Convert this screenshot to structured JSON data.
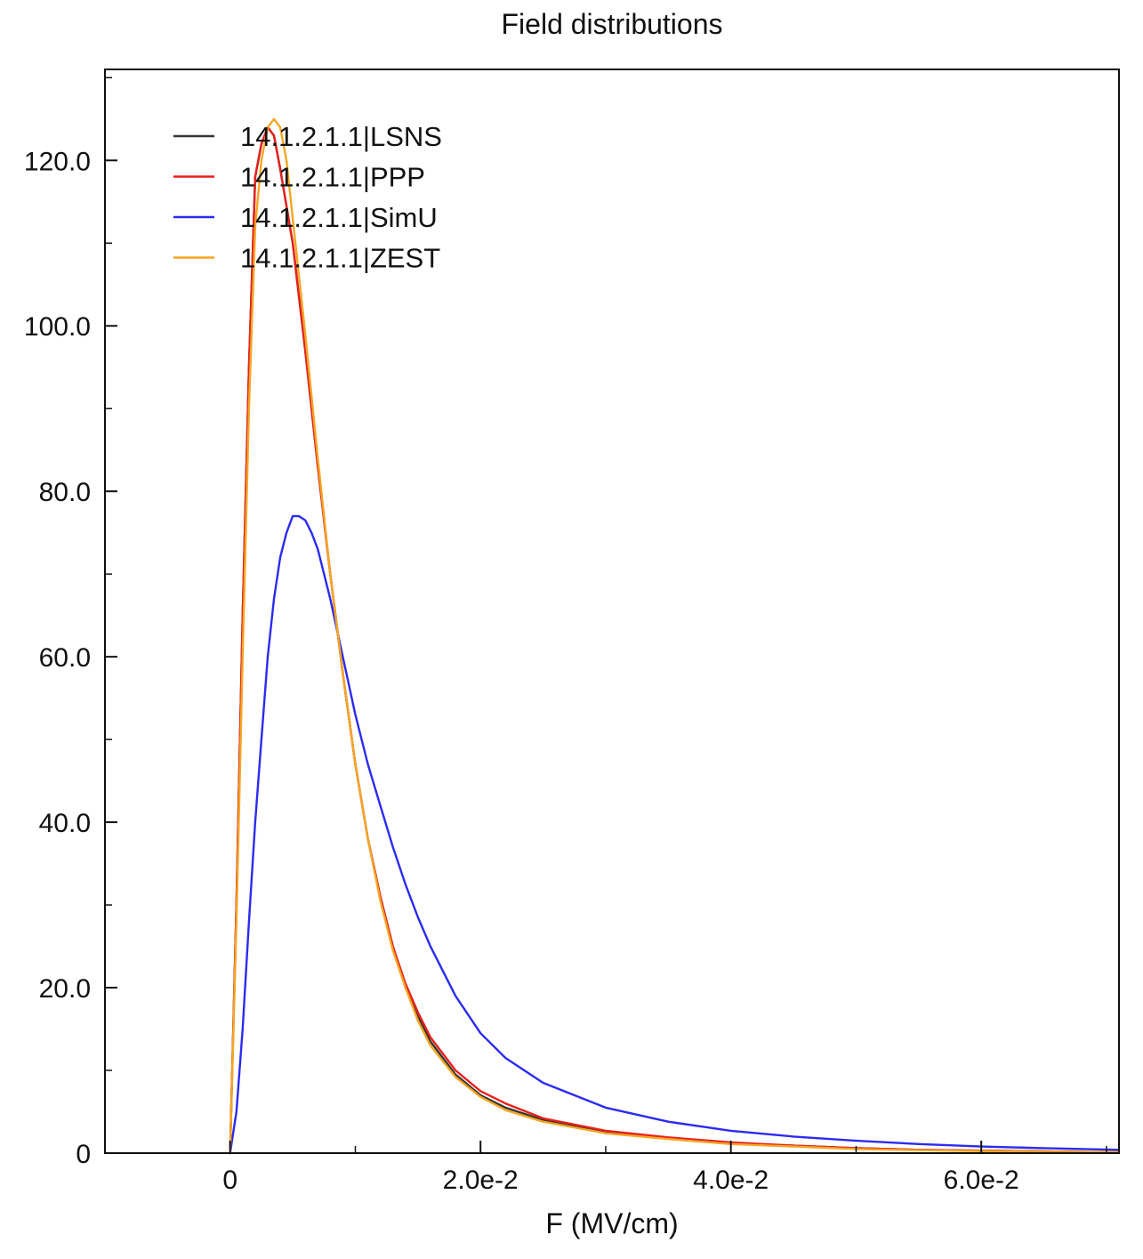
{
  "chart_data": {
    "type": "line",
    "title": "Field distributions",
    "xlabel": "F (MV/cm)",
    "ylabel": "",
    "xlim": [
      -0.01,
      0.071
    ],
    "ylim": [
      0,
      131
    ],
    "xticks": [
      0,
      0.02,
      0.04,
      0.06
    ],
    "xtick_labels": [
      "0",
      "2.0e-2",
      "4.0e-2",
      "6.0e-2"
    ],
    "yticks": [
      0,
      20,
      40,
      60,
      80,
      100,
      120
    ],
    "ytick_labels": [
      "0",
      "20.0",
      "40.0",
      "60.0",
      "80.0",
      "100.0",
      "120.0"
    ],
    "grid": false,
    "legend_position": "top-left",
    "series": [
      {
        "name": "14.1.2.1.1|LSNS",
        "color": "#333333",
        "x": [
          0,
          0.0005,
          0.001,
          0.0015,
          0.002,
          0.0025,
          0.003,
          0.0035,
          0.004,
          0.005,
          0.006,
          0.007,
          0.008,
          0.009,
          0.01,
          0.011,
          0.012,
          0.013,
          0.014,
          0.015,
          0.016,
          0.018,
          0.02,
          0.022,
          0.025,
          0.03,
          0.035,
          0.04,
          0.045,
          0.05,
          0.055,
          0.06,
          0.065,
          0.071
        ],
        "y": [
          0,
          30,
          65,
          95,
          118,
          122,
          124,
          123,
          119,
          110,
          97,
          83,
          70,
          58,
          47,
          38,
          31,
          25,
          20,
          16.5,
          13.5,
          9.5,
          7,
          5.5,
          4,
          2.6,
          1.8,
          1.2,
          0.9,
          0.6,
          0.4,
          0.3,
          0.2,
          0.1
        ]
      },
      {
        "name": "14.1.2.1.1|PPP",
        "color": "#e8201c",
        "x": [
          0,
          0.0005,
          0.001,
          0.0015,
          0.002,
          0.0025,
          0.003,
          0.0035,
          0.004,
          0.005,
          0.006,
          0.007,
          0.008,
          0.009,
          0.01,
          0.011,
          0.012,
          0.013,
          0.014,
          0.015,
          0.016,
          0.018,
          0.02,
          0.022,
          0.025,
          0.03,
          0.035,
          0.04,
          0.045,
          0.05,
          0.055,
          0.06,
          0.065,
          0.071
        ],
        "y": [
          0,
          30,
          65,
          95,
          118,
          122,
          124,
          123,
          119,
          110,
          97,
          83,
          70,
          58,
          47,
          38,
          31,
          25,
          20.5,
          17,
          14,
          10,
          7.5,
          6,
          4.2,
          2.7,
          1.9,
          1.3,
          0.9,
          0.6,
          0.4,
          0.3,
          0.2,
          0.1
        ]
      },
      {
        "name": "14.1.2.1.1|SimU",
        "color": "#2b2bf0",
        "x": [
          0,
          0.0005,
          0.001,
          0.0015,
          0.002,
          0.0025,
          0.003,
          0.0035,
          0.004,
          0.0045,
          0.005,
          0.0055,
          0.006,
          0.0065,
          0.007,
          0.008,
          0.009,
          0.01,
          0.011,
          0.012,
          0.013,
          0.014,
          0.015,
          0.016,
          0.018,
          0.02,
          0.022,
          0.025,
          0.03,
          0.035,
          0.04,
          0.045,
          0.05,
          0.055,
          0.06,
          0.065,
          0.071
        ],
        "y": [
          0,
          5,
          15,
          28,
          40,
          50,
          60,
          67,
          72,
          75,
          77,
          77,
          76.5,
          75,
          73,
          67,
          60,
          53,
          47,
          42,
          37,
          32.5,
          28.5,
          25,
          19,
          14.5,
          11.5,
          8.5,
          5.5,
          3.8,
          2.7,
          2,
          1.5,
          1.1,
          0.8,
          0.6,
          0.4
        ]
      },
      {
        "name": "14.1.2.1.1|ZEST",
        "color": "#f5a623",
        "x": [
          0,
          0.0005,
          0.001,
          0.0015,
          0.002,
          0.0025,
          0.003,
          0.0035,
          0.004,
          0.0045,
          0.005,
          0.006,
          0.007,
          0.008,
          0.009,
          0.01,
          0.011,
          0.012,
          0.013,
          0.014,
          0.015,
          0.016,
          0.018,
          0.02,
          0.022,
          0.025,
          0.03,
          0.035,
          0.04,
          0.045,
          0.05,
          0.055,
          0.06,
          0.065,
          0.071
        ],
        "y": [
          0,
          28,
          60,
          90,
          112,
          120,
          124,
          125,
          124,
          120,
          113,
          99,
          84,
          70,
          58,
          47,
          38,
          30.5,
          24.5,
          20,
          16,
          13,
          9.2,
          6.8,
          5.2,
          3.8,
          2.4,
          1.7,
          1.1,
          0.8,
          0.5,
          0.35,
          0.25,
          0.15,
          0.1
        ]
      }
    ]
  }
}
